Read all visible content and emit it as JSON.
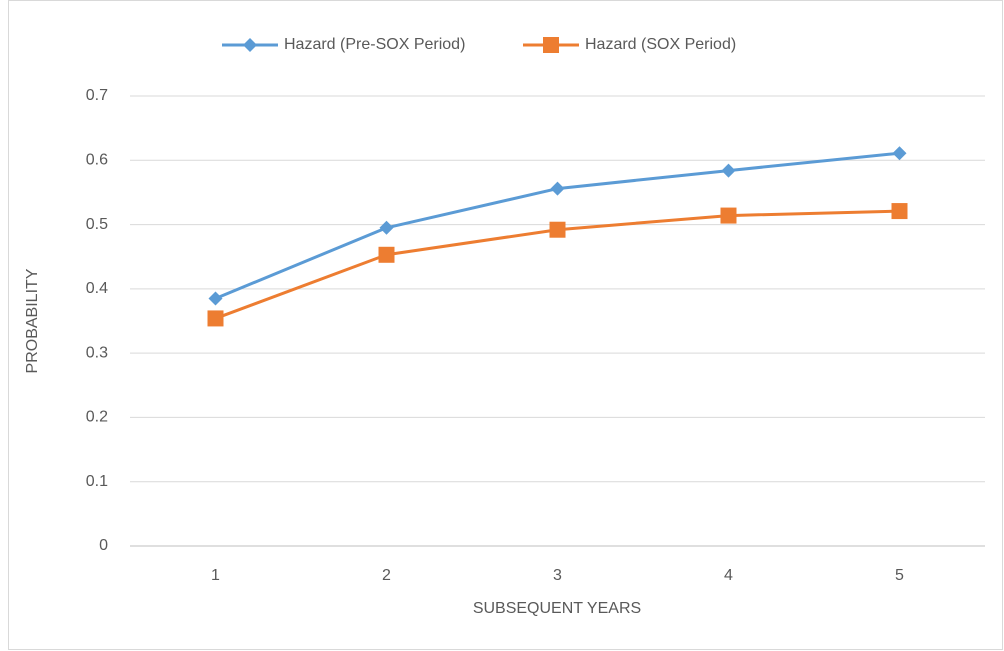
{
  "chart_data": {
    "type": "line",
    "categories": [
      "1",
      "2",
      "3",
      "4",
      "5"
    ],
    "series": [
      {
        "name": "Hazard (Pre-SOX Period)",
        "color": "#5b9bd5",
        "marker": "diamond",
        "values": [
          0.385,
          0.495,
          0.556,
          0.584,
          0.611
        ]
      },
      {
        "name": "Hazard (SOX Period)",
        "color": "#ed7d31",
        "marker": "square",
        "values": [
          0.354,
          0.453,
          0.492,
          0.514,
          0.521
        ]
      }
    ],
    "x_label": "SUBSEQUENT YEARS",
    "y_label": "PROBABILITY",
    "ylim": [
      0,
      0.7
    ],
    "yticks": [
      0,
      0.1,
      0.2,
      0.3,
      0.4,
      0.5,
      0.6,
      0.7
    ],
    "grid": true,
    "legend": "top"
  }
}
